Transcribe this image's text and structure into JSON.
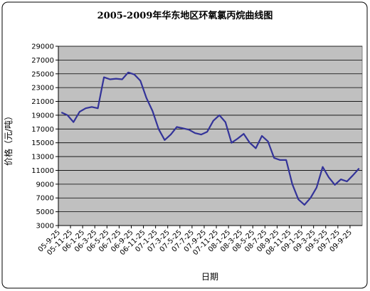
{
  "chart_data": {
    "type": "line",
    "title": "2005-2009年华东地区环氧氯丙烷曲线图",
    "y_label": "价格（元/吨）",
    "x_label": "日期",
    "categories": [
      "05-9-25",
      null,
      "05-11-25",
      null,
      "06-1-25",
      null,
      "06-3-25",
      null,
      "06-5-25",
      null,
      "06-7-25",
      null,
      "06-9-25",
      null,
      "06-11-25",
      null,
      "07-1-25",
      null,
      "07-3-25",
      null,
      "07-5-25",
      null,
      "07-7-25",
      null,
      "07-9-25",
      null,
      "07-11-25",
      null,
      "08-1-25",
      null,
      "08-3-25",
      null,
      "08-5-25",
      null,
      "08-7-25",
      null,
      "08-9-25",
      null,
      "08-11-25",
      null,
      "09-1-25",
      null,
      "09-3-25",
      null,
      "09-5-25",
      null,
      "09-7-25",
      null,
      "09-9-25",
      null
    ],
    "series": [
      {
        "name": "价格",
        "color": "#333399",
        "values": [
          19400,
          19000,
          18000,
          19500,
          20000,
          20200,
          20000,
          24500,
          24200,
          24300,
          24200,
          25200,
          24900,
          24000,
          21500,
          19600,
          17000,
          15400,
          16200,
          17300,
          17100,
          16900,
          16400,
          16200,
          16600,
          18200,
          19000,
          18000,
          15000,
          15600,
          16300,
          15000,
          14200,
          16000,
          15200,
          12800,
          12500,
          12500,
          9000,
          6800,
          6000,
          7000,
          8500,
          11500,
          10000,
          8900,
          9700,
          9400,
          10300,
          11300
        ]
      }
    ],
    "ylim": [
      3000,
      29000
    ],
    "yticks": [
      3000,
      5000,
      7000,
      9000,
      11000,
      13000,
      15000,
      17000,
      19000,
      21000,
      23000,
      25000,
      27000,
      29000
    ],
    "grid": true,
    "plot_color": "#c0c0c0"
  }
}
